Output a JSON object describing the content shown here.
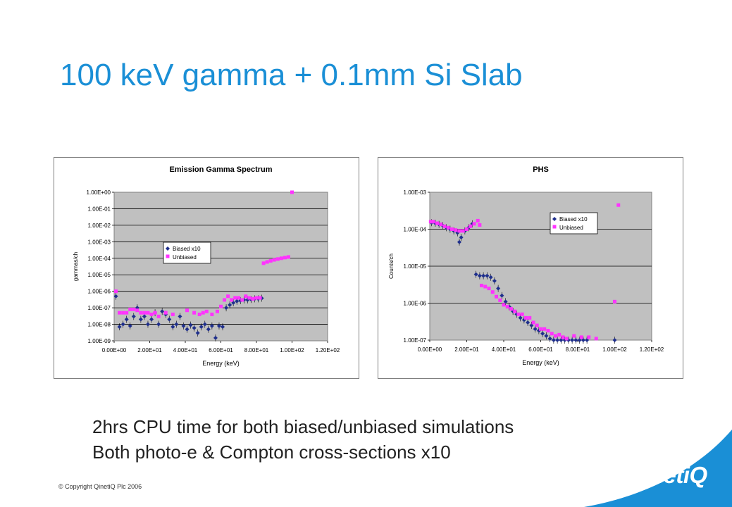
{
  "slide": {
    "title": "100 keV gamma + 0.1mm Si Slab",
    "bullets": [
      "2hrs CPU time for both biased/unbiased simulations",
      "Both photo-e & Compton  cross-sections x10"
    ],
    "copyright": "© Copyright QinetiQ Plc 2006",
    "logo_text": "QinetiQ"
  },
  "colors": {
    "title": "#1a8fd6",
    "biased": "#1f2f8c",
    "unbiased": "#ff33ff",
    "plot_bg": "#c0c0c0",
    "logo_bg": "#1a8fd6"
  },
  "chart_data": [
    {
      "type": "scatter",
      "title": "Emission Gamma Spectrum",
      "xlabel": "Energy (keV)",
      "ylabel": "gammas/ch",
      "xlim": [
        0,
        120
      ],
      "ylim_log10": [
        -9,
        0
      ],
      "yscale": "log",
      "x_tick_labels": [
        "0.00E+00",
        "2.00E+01",
        "4.00E+01",
        "6.00E+01",
        "8.00E+01",
        "1.00E+02",
        "1.20E+02"
      ],
      "y_tick_labels": [
        "1.00E-09",
        "1.00E-08",
        "1.00E-07",
        "1.00E-06",
        "1.00E-05",
        "1.00E-04",
        "1.00E-03",
        "1.00E-02",
        "1.00E-01",
        "1.00E+00"
      ],
      "legend": {
        "position": "center-left",
        "entries": [
          "Biased x10",
          "Unbiased"
        ]
      },
      "grid": "horizontal",
      "series": [
        {
          "name": "Biased x10",
          "marker": "diamond",
          "x": [
            1,
            3,
            5,
            7,
            9,
            11,
            13,
            15,
            17,
            19,
            21,
            23,
            25,
            27,
            29,
            31,
            33,
            35,
            37,
            39,
            41,
            43,
            45,
            47,
            49,
            51,
            53,
            55,
            57,
            59,
            61,
            63,
            65,
            67,
            69,
            71,
            73,
            75,
            77,
            79,
            81,
            83
          ],
          "y": [
            5e-07,
            7e-09,
            1e-08,
            2e-08,
            8e-09,
            3e-08,
            1e-07,
            2e-08,
            3e-08,
            1e-08,
            2e-08,
            5e-08,
            1e-08,
            6e-08,
            4e-08,
            2e-08,
            7e-09,
            1e-08,
            3e-08,
            8e-09,
            5e-09,
            9e-09,
            6e-09,
            3e-09,
            7e-09,
            1e-08,
            5e-09,
            8e-09,
            1.5e-09,
            8e-09,
            7e-09,
            1e-07,
            1.5e-07,
            2e-07,
            2.5e-07,
            2.7e-07,
            3e-07,
            3e-07,
            3.2e-07,
            3.5e-07,
            3.5e-07,
            3.8e-07
          ]
        },
        {
          "name": "Unbiased",
          "marker": "square",
          "x": [
            1,
            3,
            5,
            7,
            9,
            11,
            13,
            15,
            17,
            19,
            21,
            23,
            25,
            29,
            33,
            41,
            45,
            48,
            50,
            52,
            55,
            58,
            60,
            62,
            64,
            66,
            68,
            70,
            72,
            74,
            76,
            78,
            80,
            82,
            84,
            86,
            88,
            90,
            92,
            94,
            96,
            98,
            100
          ],
          "y": [
            1e-06,
            5e-08,
            5e-08,
            5e-08,
            8e-08,
            8e-08,
            7e-08,
            5e-08,
            5e-08,
            5e-08,
            4e-08,
            5e-08,
            3e-08,
            5e-08,
            4e-08,
            7e-08,
            5e-08,
            4e-08,
            5e-08,
            6e-08,
            4e-08,
            6e-08,
            1.2e-07,
            3e-07,
            5e-07,
            3e-07,
            4e-07,
            4e-07,
            3e-07,
            5e-07,
            4e-07,
            3.5e-07,
            4e-07,
            4e-07,
            5e-05,
            6e-05,
            7e-05,
            8e-05,
            9e-05,
            0.0001,
            0.00011,
            0.00012,
            1
          ]
        }
      ]
    },
    {
      "type": "scatter",
      "title": "PHS",
      "xlabel": "Energy (keV)",
      "ylabel": "Counts/ch",
      "xlim": [
        0,
        120
      ],
      "ylim_log10": [
        -7,
        -3
      ],
      "yscale": "log",
      "x_tick_labels": [
        "0.00E+00",
        "2.00E+01",
        "4.00E+01",
        "6.00E+01",
        "8.00E+01",
        "1.00E+02",
        "1.20E+02"
      ],
      "y_tick_labels": [
        "1.00E-07",
        "1.00E-06",
        "1.00E-05",
        "1.00E-04",
        "1.00E-03"
      ],
      "legend": {
        "position": "top-right",
        "entries": [
          "Biased x10",
          "Unbiased"
        ]
      },
      "grid": "horizontal",
      "series": [
        {
          "name": "Biased x10",
          "marker": "diamond",
          "x": [
            1,
            3,
            5,
            7,
            9,
            11,
            13,
            15,
            16,
            17,
            19,
            21,
            23,
            25,
            27,
            29,
            31,
            33,
            35,
            37,
            39,
            41,
            43,
            45,
            47,
            49,
            51,
            53,
            55,
            57,
            59,
            61,
            63,
            65,
            67,
            69,
            71,
            73,
            75,
            77,
            79,
            81,
            83,
            85,
            100
          ],
          "y": [
            0.00015,
            0.000145,
            0.000135,
            0.000125,
            0.00011,
            0.0001,
            9e-05,
            8e-05,
            4.5e-05,
            6e-05,
            9e-05,
            0.00011,
            0.00014,
            6e-06,
            5.5e-06,
            5.5e-06,
            5.5e-06,
            5e-06,
            4e-06,
            2.5e-06,
            1.6e-06,
            1.1e-06,
            8e-07,
            6e-07,
            5e-07,
            4e-07,
            3.5e-07,
            3e-07,
            2.5e-07,
            2e-07,
            1.8e-07,
            1.5e-07,
            1.3e-07,
            1.1e-07,
            1e-07,
            1e-07,
            1e-07,
            1e-07,
            1e-07,
            1e-07,
            1e-07,
            1e-07,
            1e-07,
            1e-07,
            1e-07
          ]
        },
        {
          "name": "Unbiased",
          "marker": "square",
          "x": [
            0.5,
            2,
            4,
            6,
            8,
            10,
            12,
            14,
            16,
            18,
            20,
            22,
            24,
            26,
            27,
            28,
            30,
            32,
            34,
            36,
            38,
            40,
            42,
            44,
            46,
            48,
            50,
            52,
            54,
            56,
            58,
            60,
            62,
            64,
            66,
            68,
            70,
            72,
            74,
            78,
            82,
            86,
            90,
            100,
            102
          ],
          "y": [
            0.00016,
            0.00016,
            0.000145,
            0.000135,
            0.00012,
            0.00011,
            0.0001,
            9.5e-05,
            9e-05,
            9e-05,
            0.0001,
            0.00012,
            0.00014,
            0.00017,
            0.00013,
            3e-06,
            2.8e-06,
            2.5e-06,
            2e-06,
            1.5e-06,
            1.2e-06,
            9e-07,
            8e-07,
            7e-07,
            6e-07,
            5e-07,
            5e-07,
            4e-07,
            4e-07,
            3e-07,
            2.5e-07,
            2e-07,
            2e-07,
            1.8e-07,
            1.5e-07,
            1.3e-07,
            1.4e-07,
            1.2e-07,
            1.1e-07,
            1.3e-07,
            1.2e-07,
            1.2e-07,
            1.1e-07,
            1.1e-06,
            0.00045
          ]
        }
      ]
    }
  ]
}
